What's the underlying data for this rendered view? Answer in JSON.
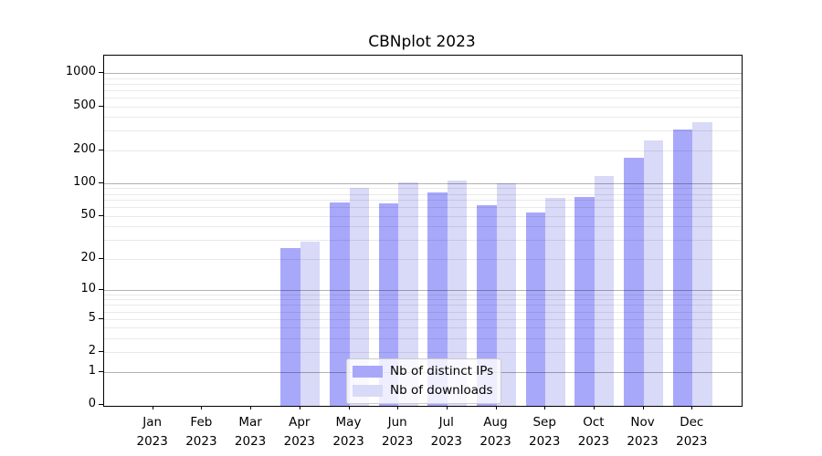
{
  "chart_data": {
    "type": "bar",
    "title": "CBNplot 2023",
    "categories": [
      "Jan",
      "Feb",
      "Mar",
      "Apr",
      "May",
      "Jun",
      "Jul",
      "Aug",
      "Sep",
      "Oct",
      "Nov",
      "Dec"
    ],
    "year": "2023",
    "series": [
      {
        "name": "Nb of distinct IPs",
        "color": "#a8a8fb",
        "values": [
          0,
          0,
          0,
          25,
          67,
          65,
          82,
          63,
          54,
          75,
          170,
          307
        ]
      },
      {
        "name": "Nb of downloads",
        "color": "#d9d9f8",
        "values": [
          0,
          0,
          0,
          29,
          90,
          102,
          105,
          100,
          73,
          116,
          243,
          360
        ]
      }
    ],
    "yscale": "log1p",
    "ylim": [
      0,
      1430
    ],
    "ytick_labels": [
      "0",
      "1",
      "2",
      "5",
      "10",
      "20",
      "50",
      "100",
      "200",
      "500",
      "1000"
    ],
    "ytick_values": [
      0,
      1,
      2,
      5,
      10,
      20,
      50,
      100,
      200,
      500,
      1000
    ],
    "major_gridlines": [
      1,
      10,
      100,
      1000
    ],
    "minor_gridlines": [
      2,
      3,
      4,
      5,
      6,
      7,
      8,
      9,
      20,
      30,
      40,
      50,
      60,
      70,
      80,
      90,
      200,
      300,
      400,
      500,
      600,
      700,
      800,
      900
    ],
    "grid": true,
    "legend_position": "lower center",
    "colors": {
      "major_grid": "rgba(0,0,0,0.30)",
      "minor_grid": "rgba(0,0,0,0.085)",
      "axis": "#000000",
      "background": "#ffffff"
    }
  }
}
